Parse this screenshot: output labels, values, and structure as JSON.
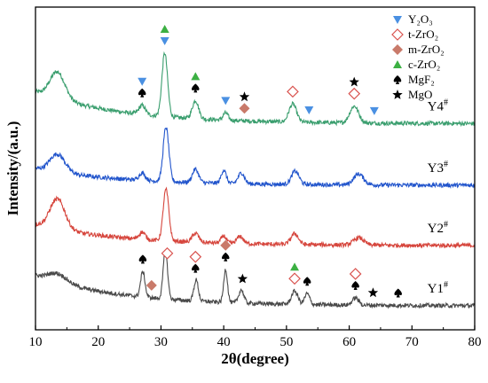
{
  "chart_data": {
    "type": "line",
    "xlabel": "2θ(degree)",
    "ylabel": "Intensity/(a.u.)",
    "xlim": [
      10,
      80
    ],
    "x_ticks": [
      10,
      20,
      30,
      40,
      50,
      60,
      70,
      80
    ],
    "y_ticks_shown": false,
    "grid": false,
    "legend_placement": "top-right",
    "legend": [
      {
        "key": "Y2O3",
        "label": "Y₂O₃",
        "marker": "triangle-down",
        "color": "#4a90e2"
      },
      {
        "key": "tZrO2",
        "label": "t-ZrO₂",
        "marker": "diamond-open",
        "color": "#d9534f"
      },
      {
        "key": "mZrO2",
        "label": "m-ZrO₂",
        "marker": "diamond-filled",
        "color": "#c97a6a"
      },
      {
        "key": "cZrO2",
        "label": "c-ZrO₂",
        "marker": "triangle-up",
        "color": "#3cb043"
      },
      {
        "key": "MgF2",
        "label": "MgF₂",
        "marker": "spade",
        "color": "#000000"
      },
      {
        "key": "MgO",
        "label": "MgO",
        "marker": "star",
        "color": "#000000"
      }
    ],
    "series": [
      {
        "name": "Y4#",
        "color": "#3a9e6e",
        "offset": 3.0,
        "baseline_start": 0.55,
        "baseline_end": 0.02,
        "peaks": [
          [
            13.5,
            0.45,
            1.2
          ],
          [
            27.0,
            0.15,
            0.5
          ],
          [
            30.6,
            1.05,
            0.45
          ],
          [
            35.5,
            0.3,
            0.5
          ],
          [
            40.3,
            0.12,
            0.4
          ],
          [
            51.0,
            0.3,
            0.6
          ],
          [
            60.8,
            0.28,
            0.7
          ]
        ]
      },
      {
        "name": "Y3#",
        "color": "#2255cc",
        "offset": 2.0,
        "baseline_start": 0.28,
        "baseline_end": 0.0,
        "peaks": [
          [
            13.5,
            0.3,
            1.2
          ],
          [
            27.0,
            0.12,
            0.5
          ],
          [
            30.8,
            0.9,
            0.45
          ],
          [
            35.5,
            0.22,
            0.5
          ],
          [
            40.0,
            0.22,
            0.4
          ],
          [
            42.8,
            0.18,
            0.5
          ],
          [
            51.4,
            0.22,
            0.6
          ],
          [
            61.5,
            0.18,
            0.8
          ]
        ]
      },
      {
        "name": "Y2#",
        "color": "#d6453c",
        "offset": 1.0,
        "baseline_start": 0.35,
        "baseline_end": 0.0,
        "peaks": [
          [
            13.5,
            0.5,
            1.2
          ],
          [
            27.0,
            0.12,
            0.5
          ],
          [
            30.8,
            0.85,
            0.45
          ],
          [
            35.5,
            0.15,
            0.5
          ],
          [
            40.0,
            0.12,
            0.4
          ],
          [
            42.6,
            0.12,
            0.5
          ],
          [
            51.3,
            0.18,
            0.6
          ],
          [
            61.5,
            0.12,
            0.8
          ]
        ]
      },
      {
        "name": "Y1#",
        "color": "#4a4a4a",
        "offset": 0.0,
        "baseline_start": 0.5,
        "baseline_end": 0.0,
        "peaks": [
          [
            13.5,
            0.15,
            1.5
          ],
          [
            27.1,
            0.42,
            0.35
          ],
          [
            30.7,
            0.8,
            0.35
          ],
          [
            35.6,
            0.35,
            0.35
          ],
          [
            40.3,
            0.55,
            0.3
          ],
          [
            42.8,
            0.22,
            0.4
          ],
          [
            51.3,
            0.22,
            0.5
          ],
          [
            53.3,
            0.18,
            0.4
          ],
          [
            61.0,
            0.12,
            0.5
          ]
        ]
      }
    ],
    "annotations": [
      {
        "series": "Y4#",
        "x": 27.0,
        "markers": [
          "Y2O3",
          "MgF2"
        ]
      },
      {
        "series": "Y4#",
        "x": 30.6,
        "markers": [
          "cZrO2",
          "Y2O3"
        ]
      },
      {
        "series": "Y4#",
        "x": 35.5,
        "markers": [
          "cZrO2",
          "MgF2"
        ]
      },
      {
        "series": "Y4#",
        "x": 40.3,
        "markers": [
          "Y2O3"
        ]
      },
      {
        "series": "Y4#",
        "x": 43.3,
        "markers": [
          "MgO",
          "mZrO2"
        ]
      },
      {
        "series": "Y4#",
        "x": 51.0,
        "markers": [
          "tZrO2"
        ]
      },
      {
        "series": "Y4#",
        "x": 53.6,
        "markers": [
          "Y2O3"
        ]
      },
      {
        "series": "Y4#",
        "x": 60.8,
        "markers": [
          "MgO",
          "tZrO2"
        ]
      },
      {
        "series": "Y4#",
        "x": 64.0,
        "markers": [
          "Y2O3"
        ]
      },
      {
        "series": "Y1#",
        "x": 27.1,
        "markers": [
          "MgF2"
        ]
      },
      {
        "series": "Y1#",
        "x": 28.5,
        "markers": [
          "mZrO2"
        ]
      },
      {
        "series": "Y1#",
        "x": 31.0,
        "markers": [
          "tZrO2"
        ]
      },
      {
        "series": "Y1#",
        "x": 35.5,
        "markers": [
          "tZrO2",
          "MgF2"
        ]
      },
      {
        "series": "Y1#",
        "x": 40.3,
        "markers": [
          "mZrO2",
          "MgF2"
        ]
      },
      {
        "series": "Y1#",
        "x": 43.0,
        "markers": [
          "MgO"
        ]
      },
      {
        "series": "Y1#",
        "x": 51.3,
        "markers": [
          "cZrO2",
          "tZrO2"
        ]
      },
      {
        "series": "Y1#",
        "x": 53.3,
        "markers": [
          "MgF2"
        ]
      },
      {
        "series": "Y1#",
        "x": 61.0,
        "markers": [
          "tZrO2",
          "MgF2"
        ]
      },
      {
        "series": "Y1#",
        "x": 63.8,
        "markers": [
          "MgO"
        ]
      },
      {
        "series": "Y1#",
        "x": 67.8,
        "markers": [
          "MgF2"
        ]
      }
    ]
  }
}
